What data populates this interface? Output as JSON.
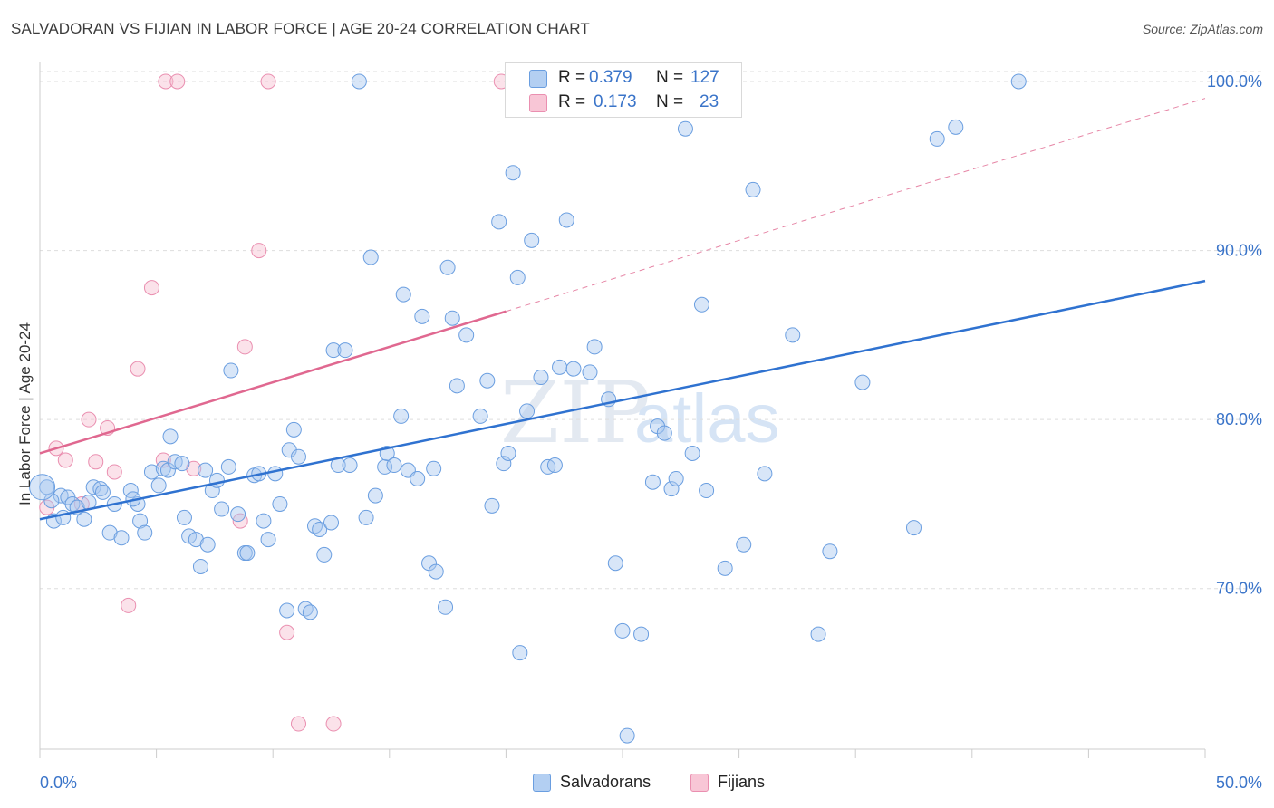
{
  "header": {
    "title": "SALVADORAN VS FIJIAN IN LABOR FORCE | AGE 20-24 CORRELATION CHART",
    "source": "Source: ZipAtlas.com"
  },
  "legend": {
    "entries": [
      {
        "r_label": "R =",
        "r_value": "0.379",
        "n_label": "N =",
        "n_value": "127"
      },
      {
        "r_label": "R =",
        "r_value": "0.173",
        "n_label": "N =",
        "n_value": "23"
      }
    ],
    "bottom": [
      "Salvadorans",
      "Fijians"
    ]
  },
  "watermark": {
    "zip": "ZIP",
    "atlas": "atlas"
  },
  "colors": {
    "blue_fill": "#a8c8f0",
    "blue_stroke": "#6a9ee0",
    "blue_line": "#2f72d0",
    "pink_fill": "#f6bfd0",
    "pink_stroke": "#ea8fb0",
    "pink_line": "#e06890",
    "axis_text": "#3a74c9",
    "grid": "#dddddd"
  },
  "chart_data": {
    "type": "scatter",
    "title": "SALVADORAN VS FIJIAN IN LABOR FORCE | AGE 20-24 CORRELATION CHART",
    "xlabel": "",
    "ylabel": "In Labor Force | Age 20-24",
    "xlim": [
      0,
      50
    ],
    "ylim": [
      60.5,
      101.5
    ],
    "x_tick_labels": [
      "0.0%",
      "50.0%"
    ],
    "y_ticks": [
      70,
      80,
      90,
      100
    ],
    "y_tick_labels": [
      "70.0%",
      "80.0%",
      "90.0%",
      "100.0%"
    ],
    "grid": "horizontal dashed",
    "legend_position": "top-center",
    "series": [
      {
        "name": "Salvadorans",
        "color": "#a8c8f0",
        "r": 0.379,
        "n": 127,
        "trend": {
          "x": [
            0,
            50
          ],
          "y": [
            74.1,
            88.2
          ]
        },
        "points": [
          [
            0.3,
            76.0
          ],
          [
            0.6,
            74.0
          ],
          [
            0.9,
            75.5
          ],
          [
            1.2,
            75.4
          ],
          [
            1.4,
            75.0
          ],
          [
            1.6,
            74.8
          ],
          [
            1.9,
            74.1
          ],
          [
            2.1,
            75.1
          ],
          [
            2.3,
            76.0
          ],
          [
            2.6,
            75.9
          ],
          [
            2.7,
            75.7
          ],
          [
            3.0,
            73.3
          ],
          [
            3.2,
            75.0
          ],
          [
            3.5,
            73.0
          ],
          [
            3.9,
            75.8
          ],
          [
            4.2,
            75.0
          ],
          [
            4.3,
            74.0
          ],
          [
            4.5,
            73.3
          ],
          [
            4.8,
            76.9
          ],
          [
            5.1,
            76.1
          ],
          [
            5.3,
            77.1
          ],
          [
            5.5,
            77.0
          ],
          [
            5.6,
            79.0
          ],
          [
            5.8,
            77.5
          ],
          [
            6.1,
            77.4
          ],
          [
            6.2,
            74.2
          ],
          [
            6.4,
            73.1
          ],
          [
            6.7,
            72.9
          ],
          [
            6.9,
            71.3
          ],
          [
            7.1,
            77.0
          ],
          [
            7.2,
            72.6
          ],
          [
            7.4,
            75.8
          ],
          [
            7.6,
            76.4
          ],
          [
            7.8,
            74.7
          ],
          [
            8.1,
            77.2
          ],
          [
            8.2,
            82.9
          ],
          [
            8.5,
            74.4
          ],
          [
            8.8,
            72.1
          ],
          [
            8.9,
            72.1
          ],
          [
            9.2,
            76.7
          ],
          [
            9.4,
            76.8
          ],
          [
            9.6,
            74.0
          ],
          [
            9.8,
            72.9
          ],
          [
            10.1,
            76.8
          ],
          [
            10.3,
            75.0
          ],
          [
            10.6,
            68.7
          ],
          [
            10.7,
            78.2
          ],
          [
            10.9,
            79.4
          ],
          [
            11.1,
            77.8
          ],
          [
            11.4,
            68.8
          ],
          [
            11.6,
            68.6
          ],
          [
            11.8,
            73.7
          ],
          [
            12.0,
            73.5
          ],
          [
            12.2,
            72.0
          ],
          [
            12.5,
            73.9
          ],
          [
            12.6,
            84.1
          ],
          [
            12.8,
            77.3
          ],
          [
            13.1,
            84.1
          ],
          [
            13.3,
            77.3
          ],
          [
            13.7,
            100.0
          ],
          [
            14.0,
            74.2
          ],
          [
            14.2,
            89.6
          ],
          [
            14.4,
            75.5
          ],
          [
            14.8,
            77.2
          ],
          [
            14.9,
            78.0
          ],
          [
            15.2,
            77.3
          ],
          [
            15.5,
            80.2
          ],
          [
            15.6,
            87.4
          ],
          [
            15.8,
            77.0
          ],
          [
            16.2,
            76.5
          ],
          [
            16.4,
            86.1
          ],
          [
            16.7,
            71.5
          ],
          [
            16.9,
            77.1
          ],
          [
            17.0,
            71.0
          ],
          [
            17.4,
            68.9
          ],
          [
            17.5,
            89.0
          ],
          [
            17.7,
            86.0
          ],
          [
            17.9,
            82.0
          ],
          [
            18.3,
            85.0
          ],
          [
            18.9,
            80.2
          ],
          [
            19.2,
            82.3
          ],
          [
            19.4,
            74.9
          ],
          [
            19.7,
            91.7
          ],
          [
            19.9,
            77.4
          ],
          [
            20.1,
            78.0
          ],
          [
            20.3,
            94.6
          ],
          [
            20.5,
            88.4
          ],
          [
            20.6,
            66.2
          ],
          [
            20.9,
            80.5
          ],
          [
            21.1,
            90.6
          ],
          [
            21.5,
            82.5
          ],
          [
            21.8,
            77.2
          ],
          [
            22.1,
            77.3
          ],
          [
            22.3,
            83.1
          ],
          [
            22.6,
            91.8
          ],
          [
            22.9,
            83.0
          ],
          [
            23.6,
            82.8
          ],
          [
            23.8,
            84.3
          ],
          [
            24.4,
            81.2
          ],
          [
            24.7,
            71.5
          ],
          [
            25.0,
            67.5
          ],
          [
            25.2,
            61.3
          ],
          [
            25.8,
            67.3
          ],
          [
            26.3,
            76.3
          ],
          [
            26.5,
            79.6
          ],
          [
            26.8,
            79.2
          ],
          [
            27.1,
            75.9
          ],
          [
            27.3,
            76.5
          ],
          [
            27.7,
            97.2
          ],
          [
            28.0,
            78.0
          ],
          [
            28.4,
            86.8
          ],
          [
            28.6,
            75.8
          ],
          [
            29.4,
            71.2
          ],
          [
            30.2,
            72.6
          ],
          [
            30.6,
            93.6
          ],
          [
            31.1,
            76.8
          ],
          [
            32.3,
            85.0
          ],
          [
            33.4,
            67.3
          ],
          [
            33.9,
            72.2
          ],
          [
            35.3,
            82.2
          ],
          [
            37.5,
            73.6
          ],
          [
            38.5,
            96.6
          ],
          [
            39.3,
            97.3
          ],
          [
            42.0,
            100.0
          ],
          [
            0.5,
            75.2
          ],
          [
            1.0,
            74.2
          ],
          [
            4.0,
            75.3
          ]
        ]
      },
      {
        "name": "Fijians",
        "color": "#f6bfd0",
        "r": 0.173,
        "n": 23,
        "trend": {
          "x": [
            0,
            20
          ],
          "y": [
            78.0,
            86.4
          ]
        },
        "trend_dashed": {
          "x": [
            20,
            50
          ],
          "y": [
            86.4,
            99.0
          ]
        },
        "points": [
          [
            0.3,
            74.8
          ],
          [
            0.7,
            78.3
          ],
          [
            1.1,
            77.6
          ],
          [
            1.8,
            75.0
          ],
          [
            2.1,
            80.0
          ],
          [
            2.4,
            77.5
          ],
          [
            2.9,
            79.5
          ],
          [
            3.2,
            76.9
          ],
          [
            3.8,
            69.0
          ],
          [
            4.2,
            83.0
          ],
          [
            4.8,
            87.8
          ],
          [
            5.3,
            77.6
          ],
          [
            5.4,
            100.0
          ],
          [
            5.9,
            100.0
          ],
          [
            6.6,
            77.1
          ],
          [
            8.6,
            74.0
          ],
          [
            8.8,
            84.3
          ],
          [
            9.4,
            90.0
          ],
          [
            9.8,
            100.0
          ],
          [
            10.6,
            67.4
          ],
          [
            11.1,
            62.0
          ],
          [
            12.6,
            62.0
          ],
          [
            19.8,
            100.0
          ]
        ]
      }
    ]
  }
}
